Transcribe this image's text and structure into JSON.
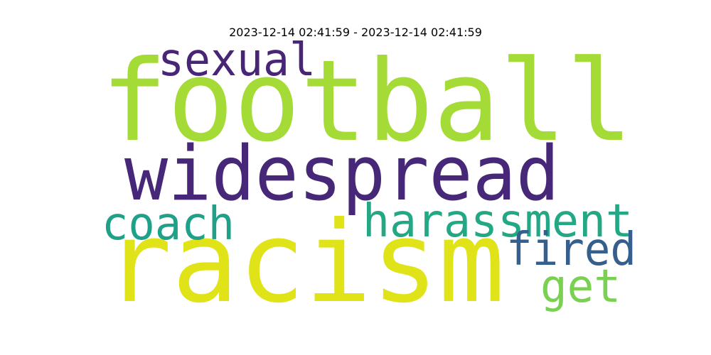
{
  "chart_data": {
    "type": "wordcloud",
    "title": "2023-12-14 02:41:59 - 2023-12-14 02:41:59",
    "words": [
      {
        "text": "football",
        "color": "#a5db36"
      },
      {
        "text": "racism",
        "color": "#dfe318"
      },
      {
        "text": "widespread",
        "color": "#472878"
      },
      {
        "text": "harassment",
        "color": "#22a884"
      },
      {
        "text": "sexual",
        "color": "#482576"
      },
      {
        "text": "coach",
        "color": "#1fa088"
      },
      {
        "text": "fired",
        "color": "#355f8d"
      },
      {
        "text": "get",
        "color": "#7ad151"
      }
    ]
  }
}
